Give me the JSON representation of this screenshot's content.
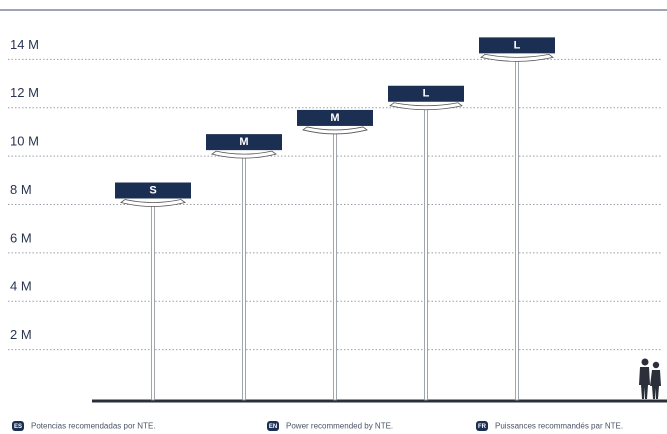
{
  "chart_data": {
    "type": "bar",
    "categories": [
      "S",
      "M",
      "M",
      "L",
      "L"
    ],
    "values": [
      8,
      10,
      11,
      12,
      14
    ],
    "color": "#1b2f52",
    "ylim": [
      0,
      16
    ],
    "yticks": [
      {
        "value": 2,
        "label": "2 M"
      },
      {
        "value": 4,
        "label": "4 M"
      },
      {
        "value": 6,
        "label": "6 M"
      },
      {
        "value": 8,
        "label": "8 M"
      },
      {
        "value": 10,
        "label": "10 M"
      },
      {
        "value": 12,
        "label": "12 M"
      },
      {
        "value": 14,
        "label": "14 M"
      }
    ],
    "grid": true,
    "notes": [
      {
        "badge": "ES",
        "text": "Potencias recomendadas por NTE."
      },
      {
        "badge": "EN",
        "text": "Power recommended by NTE."
      },
      {
        "badge": "FR",
        "text": "Puissances recommandés par NTE."
      }
    ]
  }
}
